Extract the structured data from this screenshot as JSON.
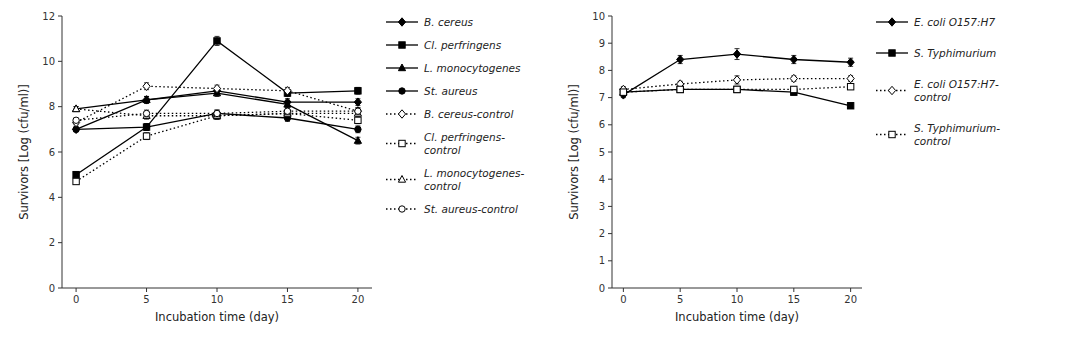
{
  "chart_data": [
    {
      "type": "line",
      "xlabel": "Incubation time (day)",
      "ylabel": "Survivors [Log (cfu/ml)]",
      "x": [
        0,
        5,
        10,
        15,
        20
      ],
      "xlim": [
        -1,
        21
      ],
      "xticks": [
        0,
        5,
        10,
        15,
        20
      ],
      "ylim": [
        0,
        12
      ],
      "yticks": [
        0,
        2,
        4,
        6,
        8,
        10,
        12
      ],
      "grid": false,
      "legend": "right",
      "series": [
        {
          "name": "B. cereus",
          "color": "#000000",
          "marker": "diamond",
          "line_style": "solid",
          "values": [
            7.0,
            8.3,
            8.7,
            8.2,
            8.2
          ],
          "errors": [
            0.1,
            0.15,
            0.15,
            0.15,
            0.15
          ]
        },
        {
          "name": "Cl. perfringens",
          "color": "#000000",
          "marker": "square",
          "line_style": "solid",
          "values": [
            5.0,
            7.1,
            10.9,
            8.6,
            8.7
          ],
          "errors": [
            0.1,
            0.15,
            0.2,
            0.15,
            0.15
          ]
        },
        {
          "name": "L. monocytogenes",
          "color": "#000000",
          "marker": "triangle",
          "line_style": "solid",
          "values": [
            7.9,
            8.3,
            8.6,
            8.1,
            6.5
          ],
          "errors": [
            0.1,
            0.15,
            0.15,
            0.15,
            0.15
          ]
        },
        {
          "name": "St. aureus",
          "color": "#000000",
          "marker": "circle",
          "line_style": "solid",
          "values": [
            7.0,
            7.1,
            7.7,
            7.5,
            7.0
          ],
          "errors": [
            0.1,
            0.15,
            0.15,
            0.15,
            0.15
          ]
        },
        {
          "name": "B. cereus-control",
          "color": "#000000",
          "marker": "open-diamond",
          "line_style": "dotted",
          "values": [
            7.3,
            8.9,
            8.8,
            8.7,
            7.8
          ],
          "errors": [
            0.1,
            0.15,
            0.15,
            0.15,
            0.15
          ]
        },
        {
          "name": "Cl. perfringens-\ncontrol",
          "color": "#000000",
          "marker": "open-square",
          "line_style": "dotted",
          "values": [
            4.7,
            6.7,
            7.6,
            7.7,
            7.4
          ],
          "errors": [
            0.1,
            0.15,
            0.15,
            0.15,
            0.15
          ]
        },
        {
          "name": "L. monocytogenes-\ncontrol",
          "color": "#000000",
          "marker": "open-triangle",
          "line_style": "dotted",
          "values": [
            7.9,
            7.6,
            7.6,
            7.7,
            7.7
          ],
          "errors": [
            0.1,
            0.15,
            0.15,
            0.15,
            0.15
          ]
        },
        {
          "name": "St. aureus-control",
          "color": "#000000",
          "marker": "open-circle",
          "line_style": "dotted",
          "values": [
            7.4,
            7.7,
            7.7,
            7.8,
            7.8
          ],
          "errors": [
            0.1,
            0.15,
            0.15,
            0.15,
            0.15
          ]
        }
      ]
    },
    {
      "type": "line",
      "xlabel": "Incubation time (day)",
      "ylabel": "Survivors [Log (cfu/ml)]",
      "x": [
        0,
        5,
        10,
        15,
        20
      ],
      "xlim": [
        -1,
        21
      ],
      "xticks": [
        0,
        5,
        10,
        15,
        20
      ],
      "ylim": [
        0,
        10
      ],
      "yticks": [
        0,
        1,
        2,
        3,
        4,
        5,
        6,
        7,
        8,
        9,
        10
      ],
      "grid": false,
      "legend": "right",
      "series": [
        {
          "name": "E. coli O157:H7",
          "color": "#000000",
          "marker": "diamond",
          "line_style": "solid",
          "values": [
            7.1,
            8.4,
            8.6,
            8.4,
            8.3
          ],
          "errors": [
            0.1,
            0.15,
            0.2,
            0.15,
            0.15
          ]
        },
        {
          "name": "S. Typhimurium",
          "color": "#000000",
          "marker": "square",
          "line_style": "solid",
          "values": [
            7.2,
            7.3,
            7.3,
            7.2,
            6.7
          ],
          "errors": [
            0.1,
            0.1,
            0.1,
            0.1,
            0.1
          ]
        },
        {
          "name": "E. coli O157:H7-\ncontrol",
          "color": "#000000",
          "marker": "open-diamond",
          "line_style": "dotted",
          "values": [
            7.3,
            7.5,
            7.65,
            7.7,
            7.7
          ],
          "errors": [
            0.1,
            0.1,
            0.15,
            0.1,
            0.1
          ]
        },
        {
          "name": "S. Typhimurium-\ncontrol",
          "color": "#000000",
          "marker": "open-square",
          "line_style": "dotted",
          "values": [
            7.2,
            7.3,
            7.3,
            7.3,
            7.4
          ],
          "errors": [
            0.1,
            0.1,
            0.1,
            0.1,
            0.1
          ]
        }
      ]
    }
  ]
}
